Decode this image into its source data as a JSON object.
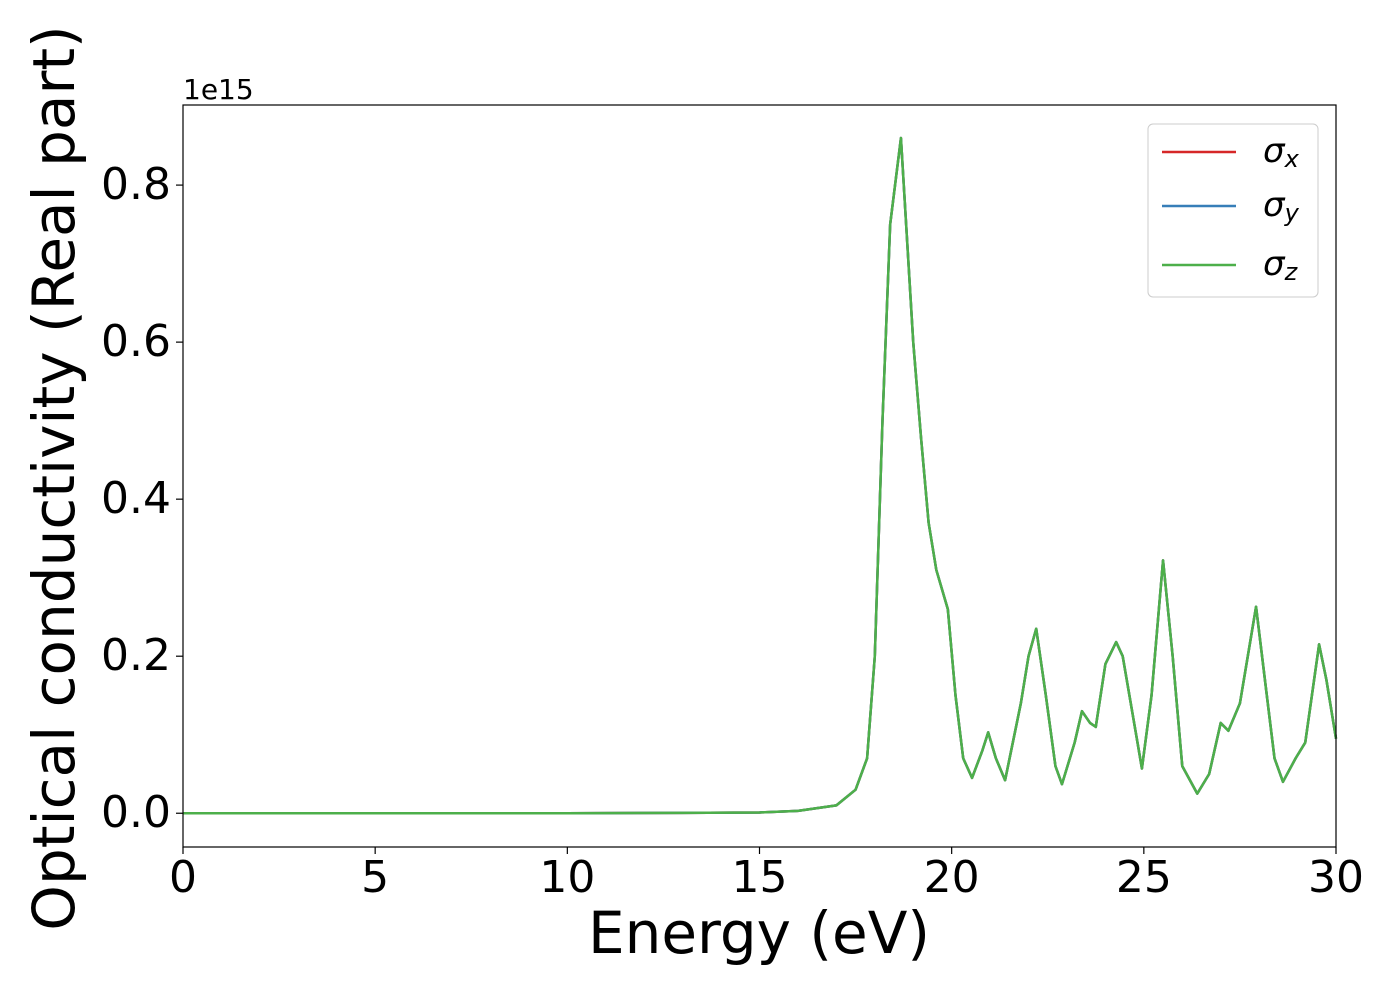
{
  "chart_data": {
    "type": "line",
    "offset_label": "1e15",
    "xlabel": "Energy (eV)",
    "ylabel": "Optical conductivity (Real part)",
    "x": [
      0,
      5,
      10,
      13,
      15,
      16,
      17,
      17.5,
      17.8,
      18.0,
      18.2,
      18.4,
      18.68,
      19.0,
      19.2,
      19.4,
      19.6,
      19.9,
      20.1,
      20.3,
      20.53,
      20.8,
      20.95,
      21.15,
      21.39,
      21.8,
      22.0,
      22.2,
      22.45,
      22.7,
      22.87,
      23.2,
      23.39,
      23.6,
      23.75,
      24.0,
      24.28,
      24.45,
      24.8,
      24.95,
      25.2,
      25.5,
      25.75,
      26.0,
      26.39,
      26.7,
      27.0,
      27.2,
      27.5,
      27.92,
      28.2,
      28.4,
      28.62,
      28.95,
      29.2,
      29.56,
      29.75,
      30.0
    ],
    "series": [
      {
        "name": "σx",
        "color": "#d62728",
        "values": [
          0,
          0,
          0,
          0.0005,
          0.001,
          0.003,
          0.01,
          0.03,
          0.07,
          0.2,
          0.5,
          0.75,
          0.86,
          0.6,
          0.48,
          0.37,
          0.31,
          0.26,
          0.15,
          0.07,
          0.045,
          0.08,
          0.103,
          0.07,
          0.042,
          0.14,
          0.2,
          0.235,
          0.15,
          0.06,
          0.037,
          0.09,
          0.13,
          0.115,
          0.11,
          0.19,
          0.218,
          0.2,
          0.1,
          0.057,
          0.15,
          0.322,
          0.2,
          0.06,
          0.025,
          0.05,
          0.115,
          0.105,
          0.14,
          0.263,
          0.15,
          0.07,
          0.04,
          0.07,
          0.09,
          0.215,
          0.17,
          0.095
        ]
      },
      {
        "name": "σy",
        "color": "#377eb8",
        "values": [
          0,
          0,
          0,
          0.0005,
          0.001,
          0.003,
          0.01,
          0.03,
          0.07,
          0.2,
          0.5,
          0.75,
          0.86,
          0.6,
          0.48,
          0.37,
          0.31,
          0.26,
          0.15,
          0.07,
          0.045,
          0.08,
          0.103,
          0.07,
          0.042,
          0.14,
          0.2,
          0.235,
          0.15,
          0.06,
          0.037,
          0.09,
          0.13,
          0.115,
          0.11,
          0.19,
          0.218,
          0.2,
          0.1,
          0.057,
          0.15,
          0.322,
          0.2,
          0.06,
          0.025,
          0.05,
          0.115,
          0.105,
          0.14,
          0.263,
          0.15,
          0.07,
          0.04,
          0.07,
          0.09,
          0.215,
          0.17,
          0.095
        ]
      },
      {
        "name": "σz",
        "color": "#4daf4a",
        "values": [
          0,
          0,
          0,
          0.0005,
          0.001,
          0.003,
          0.01,
          0.03,
          0.07,
          0.2,
          0.5,
          0.75,
          0.86,
          0.6,
          0.48,
          0.37,
          0.31,
          0.26,
          0.15,
          0.07,
          0.045,
          0.08,
          0.103,
          0.07,
          0.042,
          0.14,
          0.2,
          0.235,
          0.15,
          0.06,
          0.037,
          0.09,
          0.13,
          0.115,
          0.11,
          0.19,
          0.218,
          0.2,
          0.1,
          0.057,
          0.15,
          0.322,
          0.2,
          0.06,
          0.025,
          0.05,
          0.115,
          0.105,
          0.14,
          0.263,
          0.15,
          0.07,
          0.04,
          0.07,
          0.09,
          0.215,
          0.17,
          0.095
        ]
      }
    ],
    "xlim": [
      0,
      30
    ],
    "xticks": [
      0,
      5,
      10,
      15,
      20,
      25,
      30
    ],
    "ylim": [
      -0.043,
      0.902
    ],
    "yticks": [
      {
        "value": 0,
        "label": "0.0"
      },
      0.2,
      0.4,
      0.6,
      0.8
    ],
    "grid": false,
    "legend": "upper right"
  }
}
